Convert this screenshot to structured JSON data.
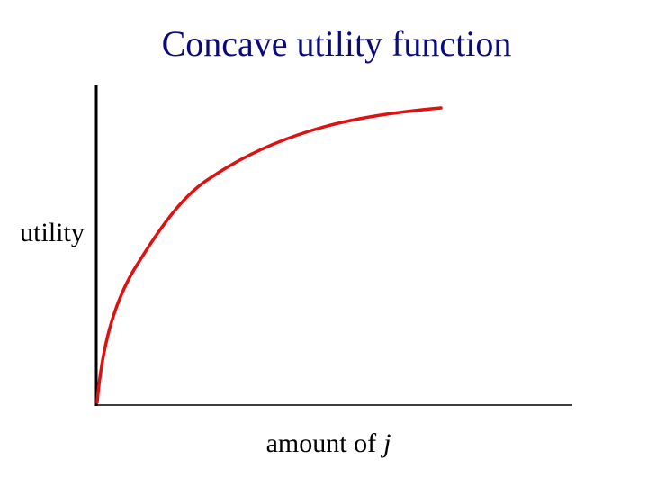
{
  "title": "Concave utility function",
  "y_axis_label": "utility",
  "x_axis_label": {
    "text": "amount of",
    "variable": "j"
  }
}
